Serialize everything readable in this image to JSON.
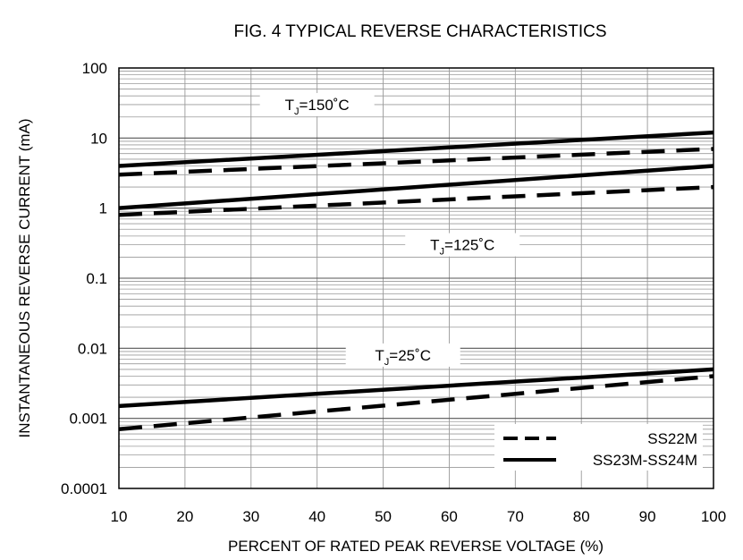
{
  "chart_data": {
    "type": "line",
    "title": "FIG. 4 TYPICAL REVERSE CHARACTERISTICS",
    "xlabel": "PERCENT OF RATED PEAK REVERSE VOLTAGE (%)",
    "ylabel": "INSTANTANEOUS REVERSE CURRENT (mA)",
    "xlim": [
      10,
      100
    ],
    "ylim": [
      0.0001,
      100
    ],
    "yscale": "log",
    "x_ticks": [
      10,
      20,
      30,
      40,
      50,
      60,
      70,
      80,
      90,
      100
    ],
    "x_tick_labels": [
      "10",
      "20",
      "30",
      "40",
      "50",
      "60",
      "70",
      "80",
      "90",
      "100"
    ],
    "y_ticks": [
      0.0001,
      0.001,
      0.01,
      0.1,
      1,
      10,
      100
    ],
    "y_tick_labels": [
      "0.0001",
      "0.001",
      "0.01",
      "0.1",
      "1",
      "10",
      "100"
    ],
    "grid": true,
    "legend": {
      "position": "bottom-right",
      "entries": [
        {
          "label": "SS22M",
          "style": "dashed"
        },
        {
          "label": "SS23M-SS24M",
          "style": "solid"
        }
      ]
    },
    "annotations": [
      {
        "base": "T",
        "sub": "J",
        "rest": "=150˚C",
        "x": 40,
        "y": 30
      },
      {
        "base": "T",
        "sub": "J",
        "rest": "=125˚C",
        "x": 62,
        "y": 0.3
      },
      {
        "base": "T",
        "sub": "J",
        "rest": "=25˚C",
        "x": 53,
        "y": 0.008
      }
    ],
    "series": [
      {
        "group": "150˚C",
        "style": "solid",
        "x": [
          10,
          100
        ],
        "y": [
          4,
          12
        ]
      },
      {
        "group": "150˚C",
        "style": "dashed",
        "x": [
          10,
          100
        ],
        "y": [
          3,
          7
        ]
      },
      {
        "group": "125˚C",
        "style": "solid",
        "x": [
          10,
          100
        ],
        "y": [
          1,
          4
        ]
      },
      {
        "group": "125˚C",
        "style": "dashed",
        "x": [
          10,
          100
        ],
        "y": [
          0.8,
          2
        ]
      },
      {
        "group": "25˚C",
        "style": "solid",
        "x": [
          10,
          100
        ],
        "y": [
          0.0015,
          0.005
        ]
      },
      {
        "group": "25˚C",
        "style": "dashed",
        "x": [
          10,
          100
        ],
        "y": [
          0.0007,
          0.004
        ]
      }
    ]
  }
}
